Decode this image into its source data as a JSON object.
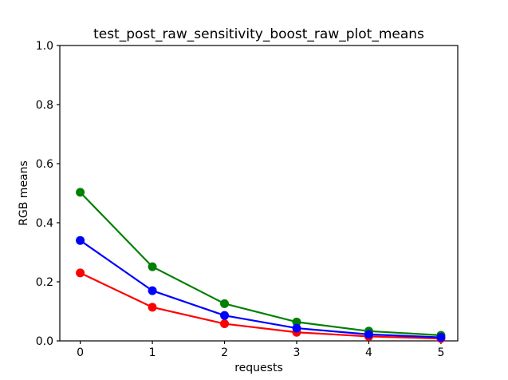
{
  "figure": {
    "background": "#ffffff",
    "frame_color": "#000000"
  },
  "chart_data": {
    "type": "line",
    "title": "test_post_raw_sensitivity_boost_raw_plot_means",
    "xlabel": "requests",
    "ylabel": "RGB means",
    "x": [
      0,
      1,
      2,
      3,
      4,
      5
    ],
    "series": [
      {
        "name": "red",
        "color": "#ff0000",
        "values": [
          0.23,
          0.114,
          0.058,
          0.029,
          0.015,
          0.008
        ]
      },
      {
        "name": "green",
        "color": "#008000",
        "values": [
          0.503,
          0.251,
          0.126,
          0.064,
          0.033,
          0.019
        ]
      },
      {
        "name": "blue",
        "color": "#0000ff",
        "values": [
          0.34,
          0.17,
          0.086,
          0.043,
          0.022,
          0.012
        ]
      }
    ],
    "xticks": [
      "0",
      "1",
      "2",
      "3",
      "4",
      "5"
    ],
    "yticks": [
      "0.0",
      "0.2",
      "0.4",
      "0.6",
      "0.8",
      "1.0"
    ],
    "xlim": [
      -0.283,
      5.233
    ],
    "ylim": [
      0.0,
      1.0
    ],
    "grid": false,
    "legend": null,
    "marker": "circle",
    "marker_radius": 5.5,
    "line_width": 2.2
  }
}
